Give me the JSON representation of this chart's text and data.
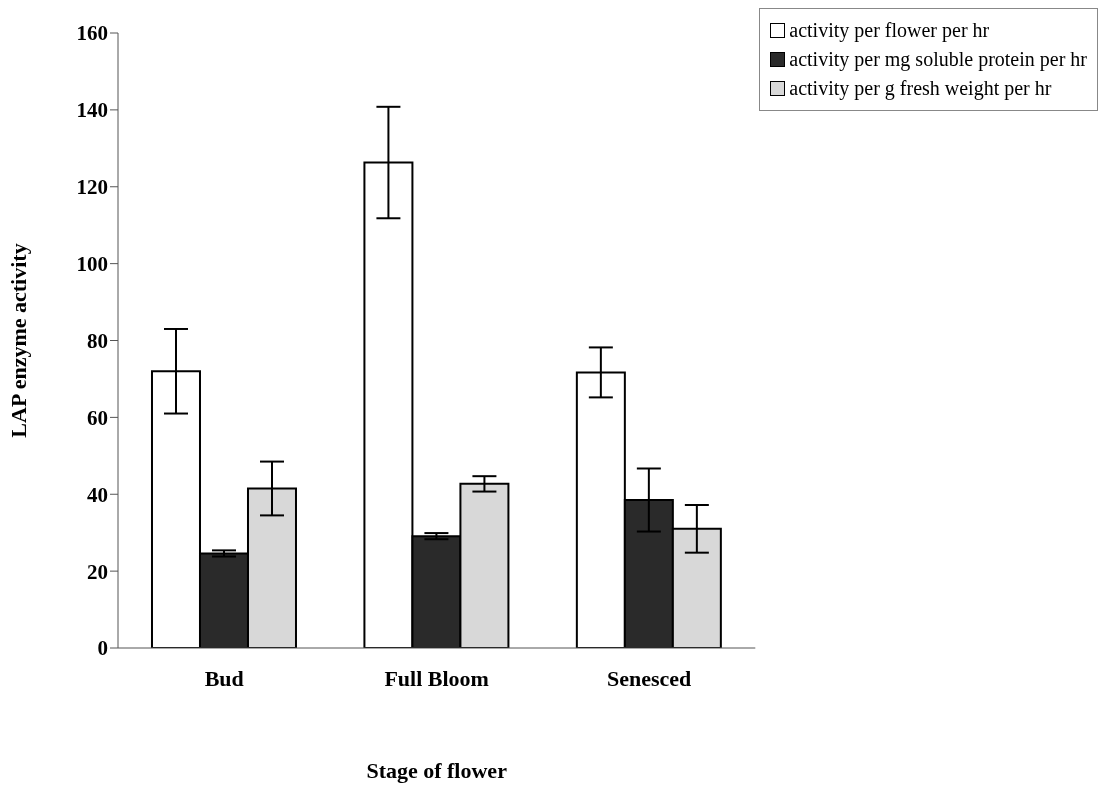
{
  "chart_data": {
    "type": "bar",
    "xlabel": "Stage of flower",
    "ylabel": "LAP enzyme activity",
    "categories": [
      "Bud",
      "Full Bloom",
      "Senesced"
    ],
    "series": [
      {
        "name": "activity per flower per hr",
        "color": "#ffffff",
        "values": [
          72,
          126.3,
          71.7
        ],
        "errors": [
          11,
          14.5,
          6.5
        ]
      },
      {
        "name": "activity per mg soluble protein per hr",
        "color": "#2a2a2a",
        "values": [
          24.6,
          29.1,
          38.5
        ],
        "errors": [
          0.8,
          0.8,
          8.2
        ]
      },
      {
        "name": "activity per g fresh weight per hr",
        "color": "#d8d8d8",
        "values": [
          41.5,
          42.7,
          31
        ],
        "errors": [
          7,
          2,
          6.2
        ]
      }
    ],
    "ylim": [
      0,
      160
    ],
    "yticks": [
      0,
      20,
      40,
      60,
      80,
      100,
      120,
      140,
      160
    ],
    "grid": false,
    "legend": "top right"
  }
}
